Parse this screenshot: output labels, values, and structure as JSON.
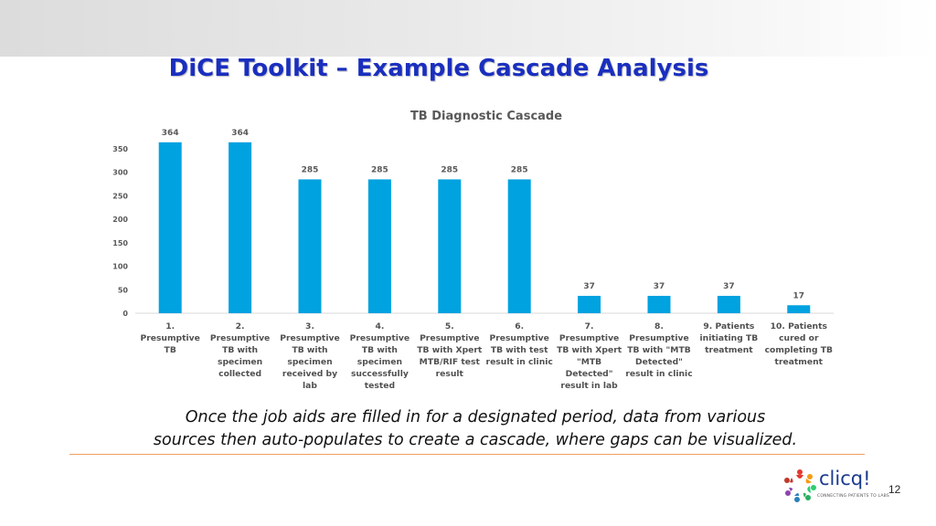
{
  "slide": {
    "title": "DiCE Toolkit – Example Cascade Analysis",
    "caption_line1": "Once the job aids are filled in for a designated period, data from various",
    "caption_line2": "sources then auto-populates to create a cascade, where gaps can be visualized.",
    "page_number": "12",
    "logo_text": "clicq!",
    "logo_tagline": "CONNECTING PATIENTS TO LABS"
  },
  "colors": {
    "bar": "#00a2e0",
    "title": "#1a2fbf",
    "axis_text": "#595959",
    "divider": "#f0a060"
  },
  "chart_data": {
    "type": "bar",
    "title": "TB Diagnostic Cascade",
    "xlabel": "",
    "ylabel": "",
    "ylim": [
      0,
      350
    ],
    "yticks": [
      0,
      50,
      100,
      150,
      200,
      250,
      300,
      350
    ],
    "grid": false,
    "categories": [
      [
        "1.",
        "Presumptive",
        "TB"
      ],
      [
        "2.",
        "Presumptive",
        "TB with",
        "specimen",
        "collected"
      ],
      [
        "3.",
        "Presumptive",
        "TB with",
        "specimen",
        "received by",
        "lab"
      ],
      [
        "4.",
        "Presumptive",
        "TB with",
        "specimen",
        "successfully",
        "tested"
      ],
      [
        "5.",
        "Presumptive",
        "TB with Xpert",
        "MTB/RIF test",
        "result"
      ],
      [
        "6.",
        "Presumptive",
        "TB with test",
        "result in clinic"
      ],
      [
        "7.",
        "Presumptive",
        "TB with Xpert",
        "\"MTB",
        "Detected\"",
        "result in lab"
      ],
      [
        "8.",
        "Presumptive",
        "TB with \"MTB",
        "Detected\"",
        "result in clinic"
      ],
      [
        "9. Patients",
        "initiating TB",
        "treatment"
      ],
      [
        "10. Patients",
        "cured or",
        "completing TB",
        "treatment"
      ]
    ],
    "values": [
      364,
      364,
      285,
      285,
      285,
      285,
      37,
      37,
      37,
      17
    ]
  }
}
